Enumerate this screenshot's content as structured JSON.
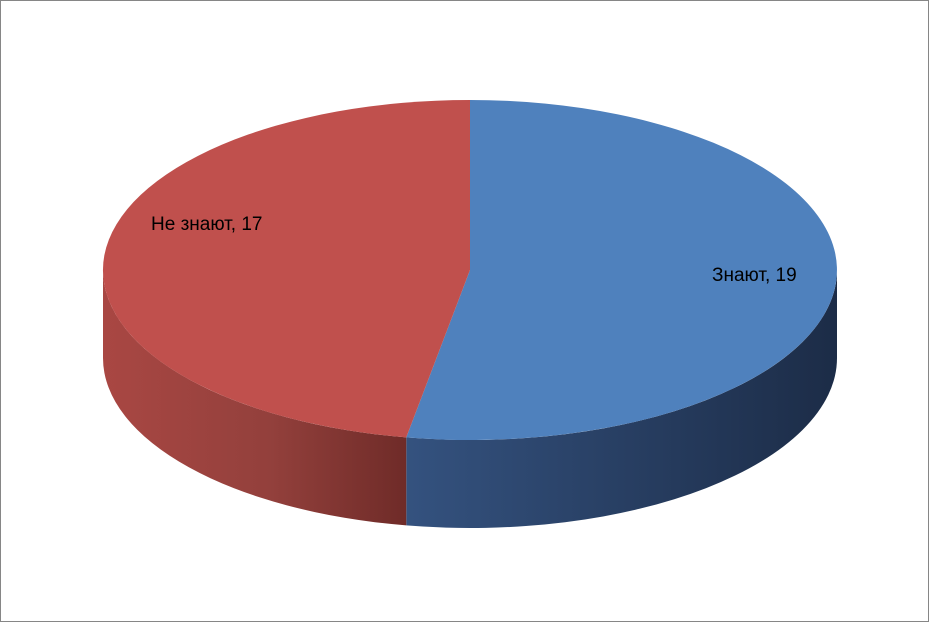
{
  "chart_data": {
    "type": "pie",
    "title": "",
    "categories": [
      "Знают",
      "Не знают"
    ],
    "values": [
      19,
      17
    ],
    "colors": [
      "#4f81bd",
      "#c0504d"
    ],
    "data_labels": [
      "Знают, 19",
      "Не знают, 17"
    ],
    "legend": "none",
    "style": "3d"
  }
}
